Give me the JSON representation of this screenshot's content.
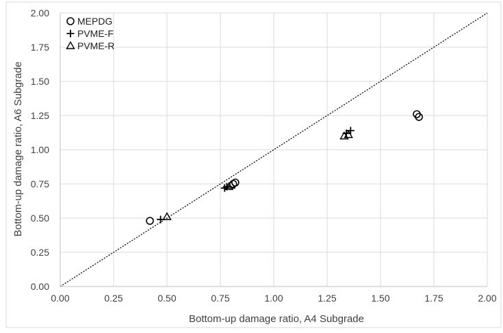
{
  "chart_data": {
    "type": "scatter",
    "title": "",
    "xlabel": "Bottom-up damage ratio, A4 Subgrade",
    "ylabel": "Bottom-up damage ratio, A6 Subgrade",
    "xlim": [
      0,
      2
    ],
    "ylim": [
      0,
      2
    ],
    "xticks": [
      "0.00",
      "0.25",
      "0.50",
      "0.75",
      "1.00",
      "1.25",
      "1.50",
      "1.75",
      "2.00"
    ],
    "yticks": [
      "0.00",
      "0.25",
      "0.50",
      "0.75",
      "1.00",
      "1.25",
      "1.50",
      "1.75",
      "2.00"
    ],
    "grid": true,
    "legend_position": "top-left",
    "reference_line": {
      "style": "dotted",
      "from": [
        0,
        0
      ],
      "to": [
        2,
        2
      ]
    },
    "series": [
      {
        "name": "MEPDG",
        "marker": "circle",
        "x": [
          0.42,
          0.81,
          0.82,
          1.67,
          1.68
        ],
        "y": [
          0.48,
          0.75,
          0.76,
          1.26,
          1.24
        ]
      },
      {
        "name": "PVME-F",
        "marker": "plus",
        "x": [
          0.47,
          0.77,
          0.78,
          1.34,
          1.36
        ],
        "y": [
          0.49,
          0.72,
          0.73,
          1.12,
          1.14
        ]
      },
      {
        "name": "PVME-R",
        "marker": "triangle",
        "x": [
          0.5,
          0.79,
          0.8,
          1.33,
          1.35
        ],
        "y": [
          0.51,
          0.73,
          0.74,
          1.1,
          1.11
        ]
      }
    ]
  }
}
